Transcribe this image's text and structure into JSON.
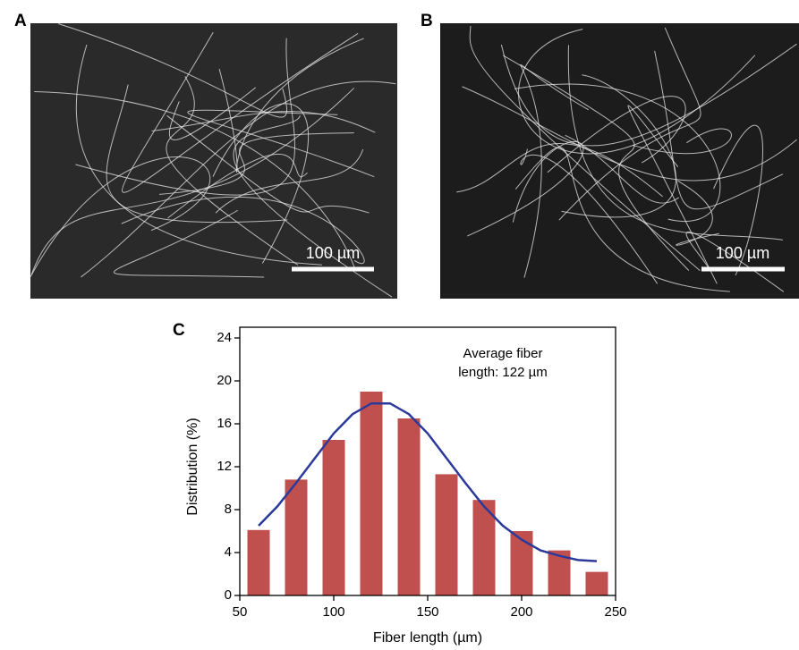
{
  "panels": [
    {
      "label": "A",
      "scale_bar": "100 µm"
    },
    {
      "label": "B",
      "scale_bar": "100 µm"
    }
  ],
  "chart_data": {
    "type": "bar",
    "label": "C",
    "x": [
      60,
      80,
      100,
      120,
      140,
      160,
      180,
      200,
      220,
      240
    ],
    "values": [
      6.1,
      10.8,
      14.5,
      19.0,
      16.5,
      11.3,
      8.9,
      6.0,
      4.2,
      2.2
    ],
    "color": "#c0504d",
    "fit_line": {
      "type": "line",
      "color": "#2b3a9a",
      "x": [
        60,
        70,
        80,
        90,
        100,
        110,
        120,
        130,
        140,
        150,
        160,
        170,
        180,
        190,
        200,
        210,
        220,
        230,
        240
      ],
      "values": [
        6.5,
        8.3,
        10.5,
        12.8,
        15.1,
        16.9,
        17.9,
        17.9,
        16.9,
        15.1,
        12.8,
        10.5,
        8.3,
        6.5,
        5.2,
        4.2,
        3.7,
        3.3,
        3.2
      ]
    },
    "annotation": [
      "Average fiber",
      "length: 122 µm"
    ],
    "x_label": "Fiber length (µm)",
    "y_label": "Distribution (%)",
    "xlim": [
      50,
      250
    ],
    "xticks": [
      50,
      100,
      150,
      200,
      250
    ],
    "ylim": [
      0,
      24
    ],
    "yticks": [
      0,
      4,
      8,
      12,
      16,
      20,
      24
    ]
  }
}
